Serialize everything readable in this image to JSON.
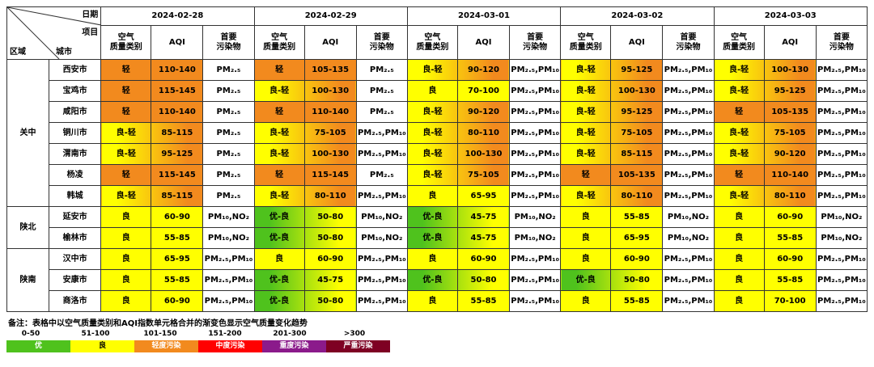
{
  "header": {
    "date_label": "日期",
    "item_label": "项目",
    "region_label": "区域",
    "city_label": "城市",
    "dates": [
      "2024-02-28",
      "2024-02-29",
      "2024-03-01",
      "2024-03-02",
      "2024-03-03"
    ],
    "sub_headers": [
      "空气\n质量类别",
      "AQI",
      "首要\n污染物"
    ]
  },
  "colors": {
    "good": "#4fc21d",
    "moderate": "#ffff00",
    "light": "#f28a1e",
    "medium": "#ff0000",
    "heavy": "#8b1a8b",
    "severe": "#7e0023"
  },
  "regions": [
    {
      "name": "关中",
      "cities": [
        {
          "name": "西安市",
          "days": [
            {
              "cat": "轻",
              "aqi": "110-140",
              "pol": "PM₂.₅",
              "grad": "light"
            },
            {
              "cat": "轻",
              "aqi": "105-135",
              "pol": "PM₂.₅",
              "grad": "light"
            },
            {
              "cat": "良-轻",
              "aqi": "90-120",
              "pol": "PM₂.₅,PM₁₀",
              "grad": "mod-light"
            },
            {
              "cat": "良-轻",
              "aqi": "95-125",
              "pol": "PM₂.₅,PM₁₀",
              "grad": "mod-light"
            },
            {
              "cat": "良-轻",
              "aqi": "100-130",
              "pol": "PM₂.₅,PM₁₀",
              "grad": "mod-light"
            }
          ]
        },
        {
          "name": "宝鸡市",
          "days": [
            {
              "cat": "轻",
              "aqi": "115-145",
              "pol": "PM₂.₅",
              "grad": "light"
            },
            {
              "cat": "良-轻",
              "aqi": "100-130",
              "pol": "PM₂.₅",
              "grad": "mod-light"
            },
            {
              "cat": "良",
              "aqi": "70-100",
              "pol": "PM₂.₅,PM₁₀",
              "grad": "moderate"
            },
            {
              "cat": "良-轻",
              "aqi": "100-130",
              "pol": "PM₂.₅,PM₁₀",
              "grad": "mod-light"
            },
            {
              "cat": "良-轻",
              "aqi": "95-125",
              "pol": "PM₂.₅,PM₁₀",
              "grad": "mod-light"
            }
          ]
        },
        {
          "name": "咸阳市",
          "days": [
            {
              "cat": "轻",
              "aqi": "110-140",
              "pol": "PM₂.₅",
              "grad": "light"
            },
            {
              "cat": "轻",
              "aqi": "110-140",
              "pol": "PM₂.₅",
              "grad": "light"
            },
            {
              "cat": "良-轻",
              "aqi": "90-120",
              "pol": "PM₂.₅,PM₁₀",
              "grad": "mod-light"
            },
            {
              "cat": "良-轻",
              "aqi": "95-125",
              "pol": "PM₂.₅,PM₁₀",
              "grad": "mod-light"
            },
            {
              "cat": "轻",
              "aqi": "105-135",
              "pol": "PM₂.₅,PM₁₀",
              "grad": "light"
            }
          ]
        },
        {
          "name": "铜川市",
          "days": [
            {
              "cat": "良-轻",
              "aqi": "85-115",
              "pol": "PM₂.₅",
              "grad": "mod-light"
            },
            {
              "cat": "良-轻",
              "aqi": "75-105",
              "pol": "PM₂.₅,PM₁₀",
              "grad": "mod-light"
            },
            {
              "cat": "良-轻",
              "aqi": "80-110",
              "pol": "PM₂.₅,PM₁₀",
              "grad": "mod-light"
            },
            {
              "cat": "良-轻",
              "aqi": "75-105",
              "pol": "PM₂.₅,PM₁₀",
              "grad": "mod-light"
            },
            {
              "cat": "良-轻",
              "aqi": "75-105",
              "pol": "PM₂.₅,PM₁₀",
              "grad": "mod-light"
            }
          ]
        },
        {
          "name": "渭南市",
          "days": [
            {
              "cat": "良-轻",
              "aqi": "95-125",
              "pol": "PM₂.₅",
              "grad": "mod-light"
            },
            {
              "cat": "良-轻",
              "aqi": "100-130",
              "pol": "PM₂.₅,PM₁₀",
              "grad": "mod-light"
            },
            {
              "cat": "良-轻",
              "aqi": "100-130",
              "pol": "PM₂.₅,PM₁₀",
              "grad": "mod-light"
            },
            {
              "cat": "良-轻",
              "aqi": "85-115",
              "pol": "PM₂.₅,PM₁₀",
              "grad": "mod-light"
            },
            {
              "cat": "良-轻",
              "aqi": "90-120",
              "pol": "PM₂.₅,PM₁₀",
              "grad": "mod-light"
            }
          ]
        },
        {
          "name": "杨凌",
          "days": [
            {
              "cat": "轻",
              "aqi": "115-145",
              "pol": "PM₂.₅",
              "grad": "light"
            },
            {
              "cat": "轻",
              "aqi": "115-145",
              "pol": "PM₂.₅",
              "grad": "light"
            },
            {
              "cat": "良-轻",
              "aqi": "75-105",
              "pol": "PM₂.₅,PM₁₀",
              "grad": "mod-light"
            },
            {
              "cat": "轻",
              "aqi": "105-135",
              "pol": "PM₂.₅,PM₁₀",
              "grad": "light"
            },
            {
              "cat": "轻",
              "aqi": "110-140",
              "pol": "PM₂.₅,PM₁₀",
              "grad": "light"
            }
          ]
        },
        {
          "name": "韩城",
          "days": [
            {
              "cat": "良-轻",
              "aqi": "85-115",
              "pol": "PM₂.₅",
              "grad": "mod-light"
            },
            {
              "cat": "良-轻",
              "aqi": "80-110",
              "pol": "PM₂.₅,PM₁₀",
              "grad": "mod-light"
            },
            {
              "cat": "良",
              "aqi": "65-95",
              "pol": "PM₂.₅,PM₁₀",
              "grad": "moderate"
            },
            {
              "cat": "良-轻",
              "aqi": "80-110",
              "pol": "PM₂.₅,PM₁₀",
              "grad": "mod-light"
            },
            {
              "cat": "良-轻",
              "aqi": "80-110",
              "pol": "PM₂.₅,PM₁₀",
              "grad": "mod-light"
            }
          ]
        }
      ]
    },
    {
      "name": "陕北",
      "cities": [
        {
          "name": "延安市",
          "days": [
            {
              "cat": "良",
              "aqi": "60-90",
              "pol": "PM₁₀,NO₂",
              "grad": "moderate"
            },
            {
              "cat": "优-良",
              "aqi": "50-80",
              "pol": "PM₁₀,NO₂",
              "grad": "good-mod"
            },
            {
              "cat": "优-良",
              "aqi": "45-75",
              "pol": "PM₁₀,NO₂",
              "grad": "good-mod"
            },
            {
              "cat": "良",
              "aqi": "55-85",
              "pol": "PM₁₀,NO₂",
              "grad": "moderate"
            },
            {
              "cat": "良",
              "aqi": "60-90",
              "pol": "PM₁₀,NO₂",
              "grad": "moderate"
            }
          ]
        },
        {
          "name": "榆林市",
          "days": [
            {
              "cat": "良",
              "aqi": "55-85",
              "pol": "PM₁₀,NO₂",
              "grad": "moderate"
            },
            {
              "cat": "优-良",
              "aqi": "50-80",
              "pol": "PM₁₀,NO₂",
              "grad": "good-mod"
            },
            {
              "cat": "优-良",
              "aqi": "45-75",
              "pol": "PM₁₀,NO₂",
              "grad": "good-mod"
            },
            {
              "cat": "良",
              "aqi": "65-95",
              "pol": "PM₁₀,NO₂",
              "grad": "moderate"
            },
            {
              "cat": "良",
              "aqi": "55-85",
              "pol": "PM₁₀,NO₂",
              "grad": "moderate"
            }
          ]
        }
      ]
    },
    {
      "name": "陕南",
      "cities": [
        {
          "name": "汉中市",
          "days": [
            {
              "cat": "良",
              "aqi": "65-95",
              "pol": "PM₂.₅,PM₁₀",
              "grad": "moderate"
            },
            {
              "cat": "良",
              "aqi": "60-90",
              "pol": "PM₂.₅,PM₁₀",
              "grad": "moderate"
            },
            {
              "cat": "良",
              "aqi": "60-90",
              "pol": "PM₂.₅,PM₁₀",
              "grad": "moderate"
            },
            {
              "cat": "良",
              "aqi": "60-90",
              "pol": "PM₂.₅,PM₁₀",
              "grad": "moderate"
            },
            {
              "cat": "良",
              "aqi": "60-90",
              "pol": "PM₂.₅,PM₁₀",
              "grad": "moderate"
            }
          ]
        },
        {
          "name": "安康市",
          "days": [
            {
              "cat": "良",
              "aqi": "55-85",
              "pol": "PM₂.₅,PM₁₀",
              "grad": "moderate"
            },
            {
              "cat": "优-良",
              "aqi": "45-75",
              "pol": "PM₂.₅,PM₁₀",
              "grad": "good-mod"
            },
            {
              "cat": "优-良",
              "aqi": "50-80",
              "pol": "PM₂.₅,PM₁₀",
              "grad": "good-mod"
            },
            {
              "cat": "优-良",
              "aqi": "50-80",
              "pol": "PM₂.₅,PM₁₀",
              "grad": "good-mod"
            },
            {
              "cat": "良",
              "aqi": "55-85",
              "pol": "PM₂.₅,PM₁₀",
              "grad": "moderate"
            }
          ]
        },
        {
          "name": "商洛市",
          "days": [
            {
              "cat": "良",
              "aqi": "60-90",
              "pol": "PM₂.₅,PM₁₀",
              "grad": "moderate"
            },
            {
              "cat": "优-良",
              "aqi": "50-80",
              "pol": "PM₂.₅,PM₁₀",
              "grad": "good-mod"
            },
            {
              "cat": "良",
              "aqi": "55-85",
              "pol": "PM₂.₅,PM₁₀",
              "grad": "moderate"
            },
            {
              "cat": "良",
              "aqi": "55-85",
              "pol": "PM₂.₅,PM₁₀",
              "grad": "moderate"
            },
            {
              "cat": "良",
              "aqi": "70-100",
              "pol": "PM₂.₅,PM₁₀",
              "grad": "moderate"
            }
          ]
        }
      ]
    }
  ],
  "legend": {
    "note": "备注：表格中以空气质量类别和AQI指数单元格合并的渐变色显示空气质量变化趋势",
    "ranges": [
      "0-50",
      "51-100",
      "101-150",
      "151-200",
      "201-300",
      ">300"
    ],
    "levels": [
      {
        "label": "优",
        "color": "#4fc21d",
        "text_color": "#ffffff"
      },
      {
        "label": "良",
        "color": "#ffff00",
        "text_color": "#000000"
      },
      {
        "label": "轻度污染",
        "color": "#f28a1e",
        "text_color": "#ffffff"
      },
      {
        "label": "中度污染",
        "color": "#ff0000",
        "text_color": "#ffffff"
      },
      {
        "label": "重度污染",
        "color": "#8b1a8b",
        "text_color": "#ffffff"
      },
      {
        "label": "严重污染",
        "color": "#7e0023",
        "text_color": "#ffffff"
      }
    ]
  }
}
